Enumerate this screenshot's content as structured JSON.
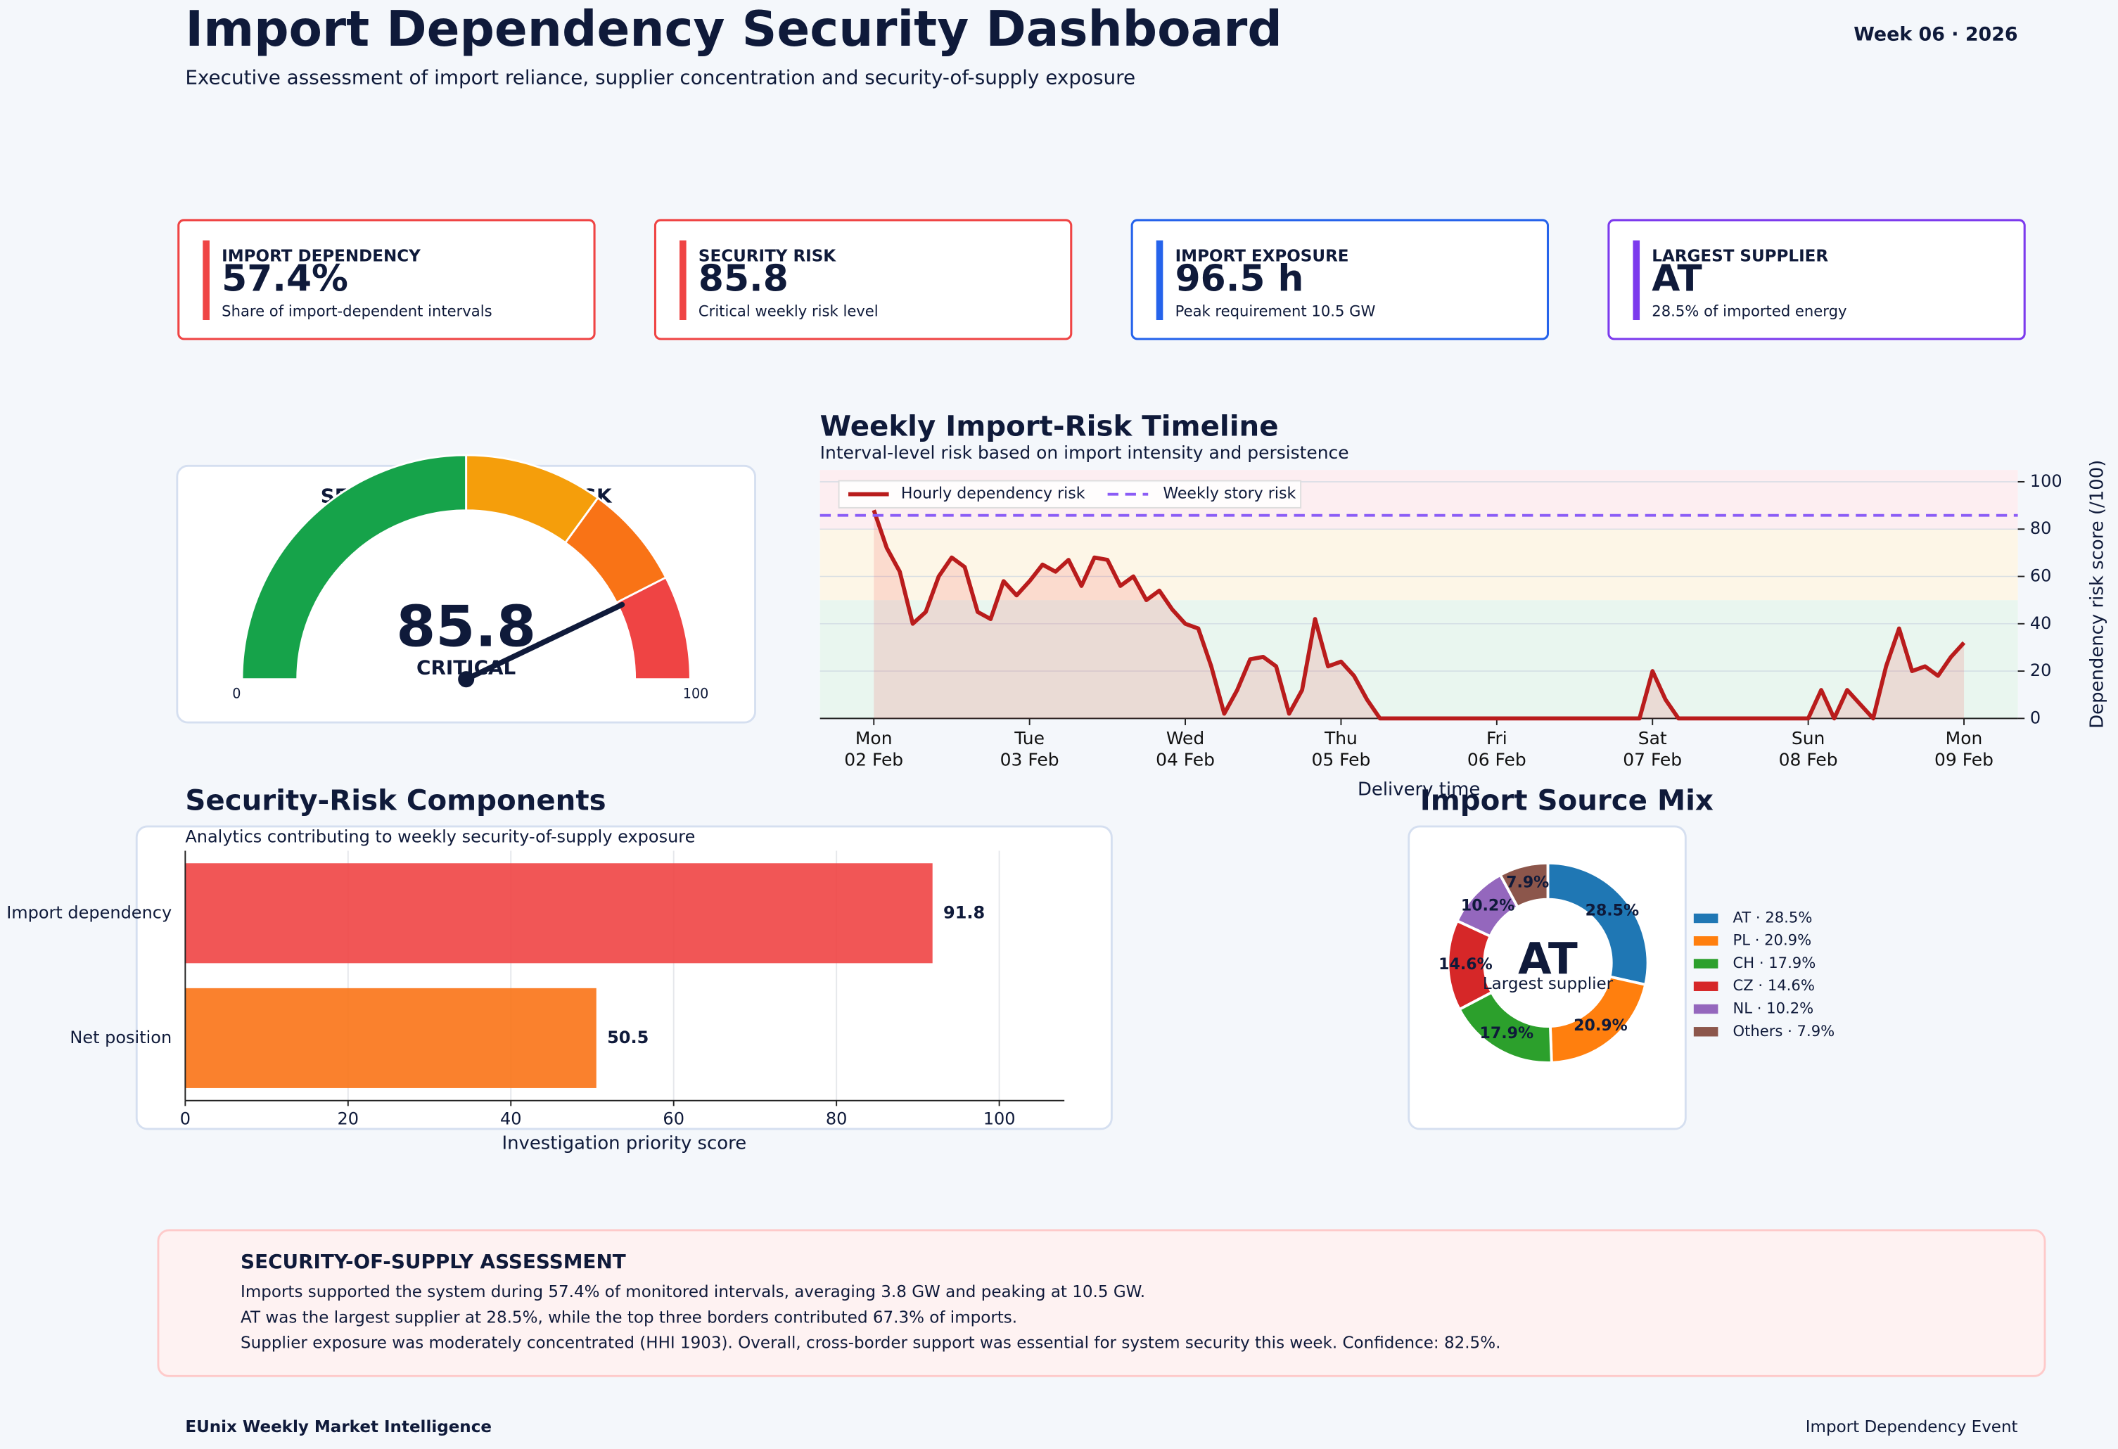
{
  "header": {
    "title": "Import Dependency Security Dashboard",
    "subtitle": "Executive assessment of import reliance, supplier concentration and security-of-supply exposure",
    "period": "Week 06 · 2026"
  },
  "kpis": [
    {
      "label": "IMPORT DEPENDENCY",
      "value": "57.4%",
      "note": "Share of import-dependent intervals",
      "color": "#ef4444"
    },
    {
      "label": "SECURITY RISK",
      "value": "85.8",
      "note": "Critical weekly risk level",
      "color": "#ef4444"
    },
    {
      "label": "IMPORT EXPOSURE",
      "value": "96.5 h",
      "note": "Peak requirement 10.5 GW",
      "color": "#2563eb"
    },
    {
      "label": "LARGEST SUPPLIER",
      "value": "AT",
      "note": "28.5% of imported energy",
      "color": "#7c3aed"
    }
  ],
  "chart_data": [
    {
      "type": "gauge",
      "title": "SECURITY-OF-SUPPLY RISK",
      "value": 85.8,
      "status": "CRITICAL",
      "status_color": "#ef4444",
      "range": [
        0,
        100
      ],
      "ticks": [
        0,
        100
      ],
      "bands": [
        {
          "from": 0,
          "to": 50,
          "color": "#16a34a"
        },
        {
          "from": 50,
          "to": 70,
          "color": "#f59e0b"
        },
        {
          "from": 70,
          "to": 85,
          "color": "#f97316"
        },
        {
          "from": 85,
          "to": 100,
          "color": "#ef4444"
        }
      ]
    },
    {
      "type": "line",
      "title": "Weekly Import-Risk Timeline",
      "subtitle": "Interval-level risk based on import intensity and persistence",
      "xlabel": "Delivery time",
      "ylabel": "Dependency risk score (/100)",
      "x": [
        0,
        2,
        4,
        6,
        8,
        10,
        12,
        14,
        16,
        18,
        20,
        22,
        24,
        26,
        28,
        30,
        32,
        34,
        36,
        38,
        40,
        42,
        44,
        46,
        48,
        50,
        52,
        54,
        56,
        58,
        60,
        62,
        64,
        66,
        68,
        70,
        72,
        74,
        76,
        78,
        80,
        82,
        84,
        86,
        88,
        90,
        92,
        94,
        96,
        98,
        100,
        102,
        104,
        106,
        108,
        110,
        112,
        114,
        116,
        118,
        120,
        122,
        124,
        126,
        128,
        130,
        132,
        134,
        136,
        138,
        140,
        142,
        144,
        146,
        148,
        150,
        152,
        154,
        156,
        158,
        160,
        162,
        164,
        166,
        168
      ],
      "xlim": [
        -8.3,
        176.3
      ],
      "xticks": [
        {
          "value": 0,
          "label": "Mon\n02 Feb"
        },
        {
          "value": 24,
          "label": "Tue\n03 Feb"
        },
        {
          "value": 48,
          "label": "Wed\n04 Feb"
        },
        {
          "value": 72,
          "label": "Thu\n05 Feb"
        },
        {
          "value": 96,
          "label": "Fri\n06 Feb"
        },
        {
          "value": 120,
          "label": "Sat\n07 Feb"
        },
        {
          "value": 144,
          "label": "Sun\n08 Feb"
        },
        {
          "value": 168,
          "label": "Mon\n09 Feb"
        }
      ],
      "ylim": [
        0,
        105
      ],
      "yticks": [
        0,
        20,
        40,
        60,
        80,
        100
      ],
      "grid": true,
      "legend": "upper left",
      "series": [
        {
          "name": "Hourly dependency risk",
          "color": "#b91c1c",
          "values": [
            88,
            72,
            62,
            40,
            45,
            60,
            68,
            64,
            45,
            42,
            58,
            52,
            58,
            65,
            62,
            67,
            56,
            68,
            67,
            56,
            60,
            50,
            54,
            46,
            40,
            38,
            22,
            2,
            12,
            25,
            26,
            22,
            2,
            12,
            42,
            22,
            24,
            18,
            8,
            0,
            0,
            0,
            0,
            0,
            0,
            0,
            0,
            0,
            0,
            0,
            0,
            0,
            0,
            0,
            0,
            0,
            0,
            0,
            0,
            0,
            20,
            8,
            0,
            0,
            0,
            0,
            0,
            0,
            0,
            0,
            0,
            0,
            0,
            12,
            0,
            12,
            6,
            0,
            22,
            38,
            20,
            22,
            18,
            26,
            32
          ]
        }
      ],
      "reference": {
        "name": "Weekly story risk",
        "value": 85.8,
        "color": "#8b5cf6"
      },
      "bands": [
        {
          "from": 0,
          "to": 50,
          "color": "#e9f6ef"
        },
        {
          "from": 50,
          "to": 80,
          "color": "#fdf6e7"
        },
        {
          "from": 80,
          "to": 105,
          "color": "#fdeef1"
        }
      ]
    },
    {
      "type": "hbar",
      "title": "Security-Risk Components",
      "subtitle": "Analytics contributing to weekly security-of-supply exposure",
      "xlabel": "Investigation priority score",
      "categories": [
        "Import dependency",
        "Net position"
      ],
      "values": [
        91.8,
        50.5
      ],
      "colors": [
        "#ef4444",
        "#f97316"
      ],
      "xlim": [
        0,
        108
      ],
      "xticks": [
        0,
        20,
        40,
        60,
        80,
        100
      ],
      "grid": true
    },
    {
      "type": "donut",
      "title": "Import Source Mix",
      "center_label": "AT",
      "center_sublabel": "Largest supplier",
      "values": [
        28.5,
        20.9,
        17.9,
        14.6,
        10.2,
        7.9
      ],
      "value_labels": [
        "28.5%",
        "20.9%",
        "17.9%",
        "14.6%",
        "10.2%",
        "7.9%"
      ],
      "legend_labels": [
        "AT · 28.5%",
        "PL · 20.9%",
        "CH · 17.9%",
        "CZ · 14.6%",
        "NL · 10.2%",
        "Others · 7.9%"
      ],
      "colors": [
        "#1f77b4",
        "#ff7f0e",
        "#2ca02c",
        "#d62728",
        "#9467bd",
        "#8c564b"
      ]
    }
  ],
  "assessment": {
    "title": "SECURITY-OF-SUPPLY ASSESSMENT",
    "lines": [
      "Imports supported the system during 57.4% of monitored intervals, averaging 3.8 GW and peaking at 10.5 GW.",
      "AT was the largest supplier at 28.5%, while the top three borders contributed 67.3% of imports.",
      "Supplier exposure was moderately concentrated (HHI 1903). Overall, cross-border support was essential for system security this week. Confidence: 82.5%."
    ]
  },
  "footer": {
    "left": "EUnix Weekly Market Intelligence",
    "right": "Import Dependency Event"
  }
}
